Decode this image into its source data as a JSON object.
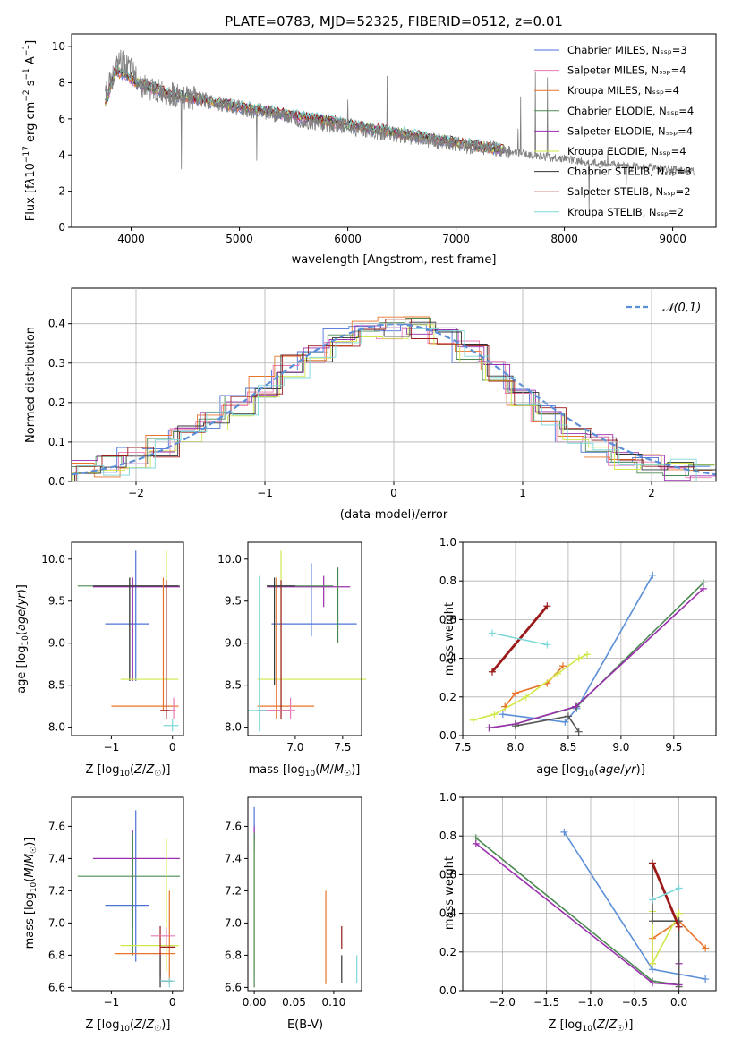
{
  "chart_data": [
    {
      "id": "spectrum",
      "type": "line",
      "title": "PLATE=0783, MJD=52325, FIBERID=0512, z=0.01",
      "xlabel": "wavelength [Angstrom, rest frame]",
      "ylabel": "Flux [f_λ 10^-17 erg cm^-2 s^-1 A^-1]",
      "xlim": [
        3450,
        9400
      ],
      "ylim": [
        0,
        10.7
      ],
      "xticks": [
        4000,
        5000,
        6000,
        7000,
        8000,
        9000
      ],
      "yticks": [
        0,
        2,
        4,
        6,
        8,
        10
      ],
      "legend_position": "top-right",
      "grid": false,
      "data_curve": {
        "name": "data",
        "color": "#808080",
        "x": [
          3760,
          3900,
          4000,
          4100,
          4200,
          4300,
          4400,
          4600,
          4800,
          5000,
          5200,
          5400,
          5600,
          5800,
          6000,
          6200,
          6400,
          6600,
          6800,
          7000,
          7200,
          7400,
          7600,
          7800,
          8000,
          8200,
          8400,
          8600,
          8800,
          9000,
          9200
        ],
        "y": [
          7.5,
          9.2,
          8.7,
          7.9,
          7.6,
          7.5,
          7.3,
          7.1,
          6.9,
          6.6,
          6.4,
          6.2,
          5.9,
          5.7,
          5.6,
          5.3,
          5.2,
          5.0,
          4.8,
          4.6,
          4.4,
          4.3,
          4.1,
          3.9,
          3.8,
          3.6,
          3.5,
          3.4,
          3.3,
          3.2,
          3.1
        ]
      },
      "model_curve": {
        "x": [
          3760,
          3850,
          3950,
          4050,
          4150,
          4300,
          4500,
          4700,
          4900,
          5100,
          5300,
          5500,
          5700,
          5900,
          6100,
          6300,
          6500,
          6700,
          6900,
          7100,
          7300,
          7450
        ],
        "y": [
          6.8,
          8.6,
          8.5,
          8.0,
          7.8,
          7.5,
          7.2,
          7.0,
          6.8,
          6.6,
          6.4,
          6.2,
          6.0,
          5.8,
          5.6,
          5.4,
          5.2,
          5.0,
          4.8,
          4.6,
          4.4,
          4.3
        ]
      },
      "series": [
        {
          "name": "Chabrier MILES, N_SSP=3",
          "color": "#4c72d8"
        },
        {
          "name": "Salpeter MILES, N_SSP=4",
          "color": "#e879b4"
        },
        {
          "name": "Kroupa MILES, N_SSP=4",
          "color": "#e8742a"
        },
        {
          "name": "Chabrier ELODIE, N_SSP=4",
          "color": "#4a8a52"
        },
        {
          "name": "Salpeter ELODIE, N_SSP=4",
          "color": "#9b2fae"
        },
        {
          "name": "Kroupa ELODIE, N_SSP=4",
          "color": "#d2e84a"
        },
        {
          "name": "Chabrier STELIB, N_SSP=3",
          "color": "#333333"
        },
        {
          "name": "Salpeter STELIB, N_SSP=2",
          "color": "#9b1a1a"
        },
        {
          "name": "Kroupa STELIB, N_SSP=2",
          "color": "#7ed8d8"
        }
      ]
    },
    {
      "id": "residuals",
      "type": "bar",
      "xlabel": "(data-model)/error",
      "ylabel": "Normed distribution",
      "xlim": [
        -2.5,
        2.5
      ],
      "ylim": [
        0,
        0.49
      ],
      "xticks": [
        -2,
        -1,
        0,
        1,
        2
      ],
      "yticks": [
        0.0,
        0.1,
        0.2,
        0.3,
        0.4
      ],
      "grid": true,
      "legend": [
        "𝒩(0,1)"
      ],
      "legend_position": "top-right",
      "gaussian_color": "#5b8fd8",
      "bin_edges": [
        -2.5,
        -2.3,
        -2.1,
        -1.9,
        -1.7,
        -1.5,
        -1.3,
        -1.1,
        -0.9,
        -0.7,
        -0.5,
        -0.3,
        -0.1,
        0.1,
        0.3,
        0.5,
        0.7,
        0.9,
        1.1,
        1.3,
        1.5,
        1.7,
        1.9,
        2.1,
        2.3,
        2.5
      ],
      "hist_values": [
        0.03,
        0.04,
        0.06,
        0.09,
        0.12,
        0.15,
        0.19,
        0.24,
        0.29,
        0.33,
        0.36,
        0.38,
        0.39,
        0.39,
        0.37,
        0.33,
        0.28,
        0.22,
        0.17,
        0.12,
        0.09,
        0.06,
        0.04,
        0.03,
        0.02
      ]
    },
    {
      "id": "age_vs_Z",
      "type": "scatter",
      "xlabel": "Z [log10(Z/Z☉)]",
      "ylabel": "age  [log10(age/yr)]",
      "xlim": [
        -1.65,
        0.18
      ],
      "ylim": [
        7.9,
        10.2
      ],
      "xticks": [
        -1,
        0
      ],
      "yticks": [
        8.0,
        8.5,
        9.0,
        9.5,
        10.0
      ],
      "grid": false
    },
    {
      "id": "age_vs_mass",
      "type": "scatter",
      "xlabel": "mass [log10(M/M☉)]",
      "xlim": [
        6.5,
        7.7
      ],
      "ylim": [
        7.9,
        10.2
      ],
      "xticks": [
        7.0,
        7.5
      ],
      "yticks": [
        8.0,
        8.5,
        9.0,
        9.5,
        10.0
      ],
      "grid": false
    },
    {
      "id": "weight_vs_age",
      "type": "line",
      "xlabel": "age  [log10(age/yr)]",
      "ylabel": "mass weight",
      "xlim": [
        7.5,
        9.9
      ],
      "ylim": [
        0,
        1.0
      ],
      "xticks": [
        7.5,
        8.0,
        8.5,
        9.0,
        9.5
      ],
      "yticks": [
        0.0,
        0.2,
        0.4,
        0.6,
        0.8,
        1.0
      ],
      "grid": true,
      "series": [
        {
          "color": "#5b8fd8",
          "x": [
            7.88,
            8.47,
            8.58,
            9.3
          ],
          "y": [
            0.11,
            0.07,
            0.14,
            0.83
          ]
        },
        {
          "color": "#e8742a",
          "x": [
            7.9,
            8.0,
            8.3,
            8.45
          ],
          "y": [
            0.15,
            0.22,
            0.27,
            0.36
          ]
        },
        {
          "color": "#4a8a52",
          "x": [
            7.75,
            8.0,
            8.58,
            9.78
          ],
          "y": [
            0.04,
            0.06,
            0.15,
            0.79
          ]
        },
        {
          "color": "#9b2fae",
          "x": [
            7.75,
            8.0,
            8.57,
            9.78
          ],
          "y": [
            0.04,
            0.06,
            0.15,
            0.76
          ]
        },
        {
          "color": "#d2e84a",
          "x": [
            7.6,
            7.8,
            8.1,
            8.4,
            8.6,
            8.68
          ],
          "y": [
            0.08,
            0.11,
            0.2,
            0.32,
            0.4,
            0.42
          ]
        },
        {
          "color": "#555555",
          "x": [
            8.0,
            8.5,
            8.6
          ],
          "y": [
            0.05,
            0.1,
            0.02
          ]
        },
        {
          "color": "#9b1a1a",
          "x": [
            7.78,
            8.3
          ],
          "y": [
            0.33,
            0.67
          ]
        },
        {
          "color": "#7ed8d8",
          "x": [
            7.78,
            8.3
          ],
          "y": [
            0.53,
            0.47
          ]
        }
      ]
    },
    {
      "id": "mass_vs_Z",
      "type": "scatter",
      "xlabel": "Z [log10(Z/Z☉)]",
      "ylabel": "mass [log10(M/M☉)]",
      "xlim": [
        -1.65,
        0.18
      ],
      "ylim": [
        6.58,
        7.78
      ],
      "xticks": [
        -1,
        0
      ],
      "yticks": [
        6.6,
        6.8,
        7.0,
        7.2,
        7.4,
        7.6
      ],
      "grid": false
    },
    {
      "id": "mass_vs_ebv",
      "type": "scatter",
      "xlabel": "E(B-V)",
      "xlim": [
        -0.008,
        0.135
      ],
      "ylim": [
        6.58,
        7.78
      ],
      "xticks": [
        0.0,
        0.05,
        0.1
      ],
      "xticklabels": [
        "0.00",
        "0.05",
        "0.10"
      ],
      "yticks": [
        6.6,
        6.8,
        7.0,
        7.2,
        7.4,
        7.6
      ],
      "grid": false
    },
    {
      "id": "weight_vs_Z",
      "type": "line",
      "xlabel": "Z [log10(Z/Z☉)]",
      "ylabel": "mass weight",
      "xlim": [
        -2.45,
        0.42
      ],
      "ylim": [
        0,
        1.0
      ],
      "xticks": [
        -2.0,
        -1.5,
        -1.0,
        -0.5,
        0.0
      ],
      "yticks": [
        0.0,
        0.2,
        0.4,
        0.6,
        0.8,
        1.0
      ],
      "grid": true,
      "series": [
        {
          "color": "#5b8fd8",
          "x": [
            -1.3,
            -0.3,
            0.3
          ],
          "y": [
            0.82,
            0.11,
            0.06
          ]
        },
        {
          "color": "#e8742a",
          "x": [
            -0.3,
            -0.3,
            0.0,
            0.3
          ],
          "y": [
            0.14,
            0.27,
            0.36,
            0.22
          ]
        },
        {
          "color": "#4a8a52",
          "x": [
            -2.3,
            -0.3,
            0.0
          ],
          "y": [
            0.79,
            0.05,
            0.03
          ]
        },
        {
          "color": "#9b2fae",
          "x": [
            -2.3,
            -0.3,
            0.0,
            0.0
          ],
          "y": [
            0.76,
            0.04,
            0.03,
            0.14
          ]
        },
        {
          "color": "#d2e84a",
          "x": [
            -0.3,
            -0.3,
            0.0
          ],
          "y": [
            0.41,
            0.14,
            0.4
          ]
        },
        {
          "color": "#555555",
          "x": [
            -0.3,
            -0.3,
            0.0,
            0.0
          ],
          "y": [
            0.66,
            0.36,
            0.36,
            0.02
          ]
        },
        {
          "color": "#9b1a1a",
          "x": [
            -0.3,
            0.0
          ],
          "y": [
            0.66,
            0.33
          ]
        },
        {
          "color": "#7ed8d8",
          "x": [
            -0.3,
            0.0
          ],
          "y": [
            0.47,
            0.53
          ]
        }
      ]
    }
  ]
}
